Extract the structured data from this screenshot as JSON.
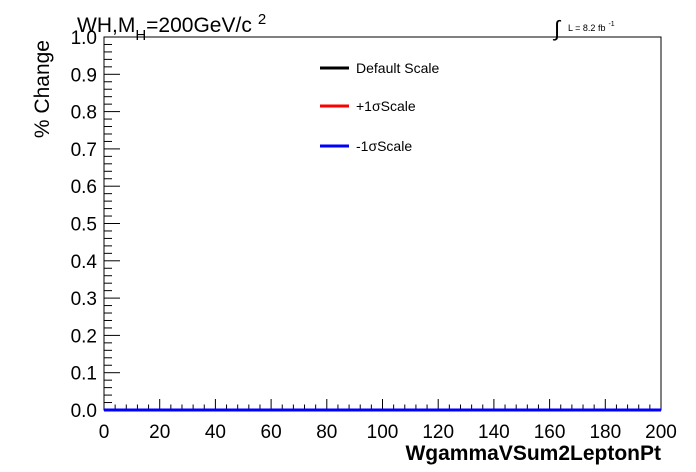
{
  "header": {
    "title_main": "WH,M",
    "title_sub": "H",
    "title_rest": "=200GeV/c",
    "title_sup": "2",
    "lumi_text": "L = 8.2 fb",
    "lumi_sup": "-1"
  },
  "chart_data": {
    "type": "line",
    "xlabel": "WgammaVSum2LeptonPt",
    "ylabel": "% Change",
    "xlim": [
      0,
      200
    ],
    "ylim": [
      0,
      1.0
    ],
    "x_ticks": [
      0,
      20,
      40,
      60,
      80,
      100,
      120,
      140,
      160,
      180,
      200
    ],
    "y_ticks": [
      0.0,
      0.1,
      0.2,
      0.3,
      0.4,
      0.5,
      0.6,
      0.7,
      0.8,
      0.9,
      1.0
    ],
    "x_tick_labels": [
      "0",
      "20",
      "40",
      "60",
      "80",
      "100",
      "120",
      "140",
      "160",
      "180",
      "200"
    ],
    "y_tick_labels": [
      "0.0",
      "0.1",
      "0.2",
      "0.3",
      "0.4",
      "0.5",
      "0.6",
      "0.7",
      "0.8",
      "0.9",
      "1.0"
    ],
    "grid": false,
    "legend_position": "top-center",
    "series": [
      {
        "name": "Default Scale",
        "color": "#000000",
        "x": [
          0,
          200
        ],
        "values": [
          0,
          0
        ]
      },
      {
        "name": "+1σScale",
        "color": "#ff0000",
        "x": [
          0,
          200
        ],
        "values": [
          0,
          0
        ]
      },
      {
        "name": "-1σScale",
        "color": "#0000ff",
        "x": [
          0,
          200
        ],
        "values": [
          0,
          0
        ]
      }
    ]
  }
}
